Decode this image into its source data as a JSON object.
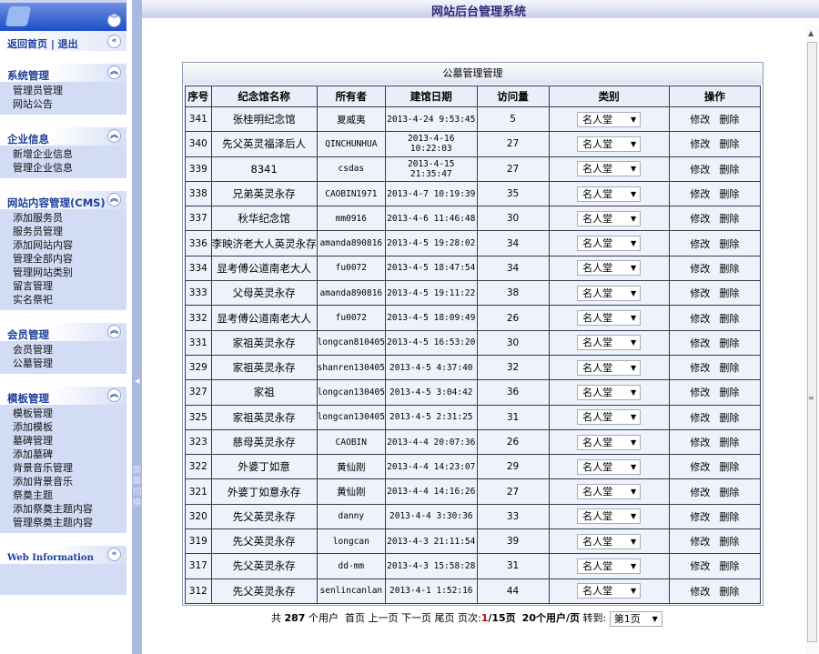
{
  "header": {
    "title": "网站后台管理系统"
  },
  "sidebar": {
    "links": "返回首页 | 退出",
    "groups": [
      {
        "title": "系统管理",
        "items": [
          "管理员管理",
          "网站公告"
        ]
      },
      {
        "title": "企业信息",
        "items": [
          "新增企业信息",
          "管理企业信息"
        ]
      },
      {
        "title": "网站内容管理(CMS)",
        "items": [
          "添加服务员",
          "服务员管理",
          "添加网站内容",
          "管理全部内容",
          "管理网站类别",
          "留言管理",
          "实名祭祀"
        ]
      },
      {
        "title": "会员管理",
        "items": [
          "会员管理",
          "公墓管理"
        ]
      },
      {
        "title": "模板管理",
        "items": [
          "模板管理",
          "添加模板",
          "墓碑管理",
          "添加墓碑",
          "背景音乐管理",
          "添加背景音乐",
          "祭奠主题",
          "添加祭奠主题内容",
          "管理祭奠主题内容"
        ]
      },
      {
        "title": "Web Information",
        "items": []
      }
    ]
  },
  "splitter": {
    "label": "屏幕切换"
  },
  "panel": {
    "title": "公墓管理管理",
    "columns": [
      "序号",
      "纪念馆名称",
      "所有者",
      "建馆日期",
      "访问量",
      "类别",
      "操作"
    ],
    "rows": [
      [
        "341",
        "张桂明纪念馆",
        "夏威夷",
        "2013-4-24 9:53:45",
        "5"
      ],
      [
        "340",
        "先父英灵福泽后人",
        "QINCHUNHUA",
        "2013-4-16 10:22:03",
        "27"
      ],
      [
        "339",
        "8341",
        "csdas",
        "2013-4-15 21:35:47",
        "27"
      ],
      [
        "338",
        "兄弟英灵永存",
        "CAOBIN1971",
        "2013-4-7 10:19:39",
        "35"
      ],
      [
        "337",
        "秋华纪念馆",
        "mm0916",
        "2013-4-6 11:46:48",
        "30"
      ],
      [
        "336",
        "李映济老大人英灵永存",
        "amanda890816",
        "2013-4-5 19:28:02",
        "34"
      ],
      [
        "334",
        "显考傅公道南老大人",
        "fu0072",
        "2013-4-5 18:47:54",
        "34"
      ],
      [
        "333",
        "父母英灵永存",
        "amanda890816",
        "2013-4-5 19:11:22",
        "38"
      ],
      [
        "332",
        "显考傅公道南老大人",
        "fu0072",
        "2013-4-5 18:09:49",
        "26"
      ],
      [
        "331",
        "家祖英灵永存",
        "longcan810405",
        "2013-4-5 16:53:20",
        "30"
      ],
      [
        "329",
        "家祖英灵永存",
        "shanren130405",
        "2013-4-5 4:37:40",
        "32"
      ],
      [
        "327",
        "家祖",
        "longcan130405",
        "2013-4-5 3:04:42",
        "36"
      ],
      [
        "325",
        "家祖英灵永存",
        "longcan130405",
        "2013-4-5 2:31:25",
        "31"
      ],
      [
        "323",
        "慈母英灵永存",
        "CAOBIN",
        "2013-4-4 20:07:36",
        "26"
      ],
      [
        "322",
        "外婆丁如意",
        "黄仙刚",
        "2013-4-4 14:23:07",
        "29"
      ],
      [
        "321",
        "外婆丁如意永存",
        "黄仙刚",
        "2013-4-4 14:16:26",
        "27"
      ],
      [
        "320",
        "先父英灵永存",
        "danny",
        "2013-4-4 3:30:36",
        "33"
      ],
      [
        "319",
        "先父英灵永存",
        "longcan",
        "2013-4-3 21:11:54",
        "39"
      ],
      [
        "317",
        "先父英灵永存",
        "dd-mm",
        "2013-4-3 15:58:28",
        "31"
      ],
      [
        "312",
        "先父英灵永存",
        "senlincanlan",
        "2013-4-1 1:52:16",
        "44"
      ]
    ],
    "category_value": "名人堂",
    "edit_label": "修改",
    "delete_label": "删除"
  },
  "pager": {
    "total_prefix": "共",
    "total": "287",
    "total_suffix": "个用户",
    "first": "首页",
    "prev": "上一页",
    "next": "下一页",
    "last": "尾页",
    "page_label": "页次:",
    "current_page": "1",
    "page_count": "/15页",
    "per_page": "20个用户/页",
    "goto_label": "转到:",
    "goto_value": "第1页"
  }
}
